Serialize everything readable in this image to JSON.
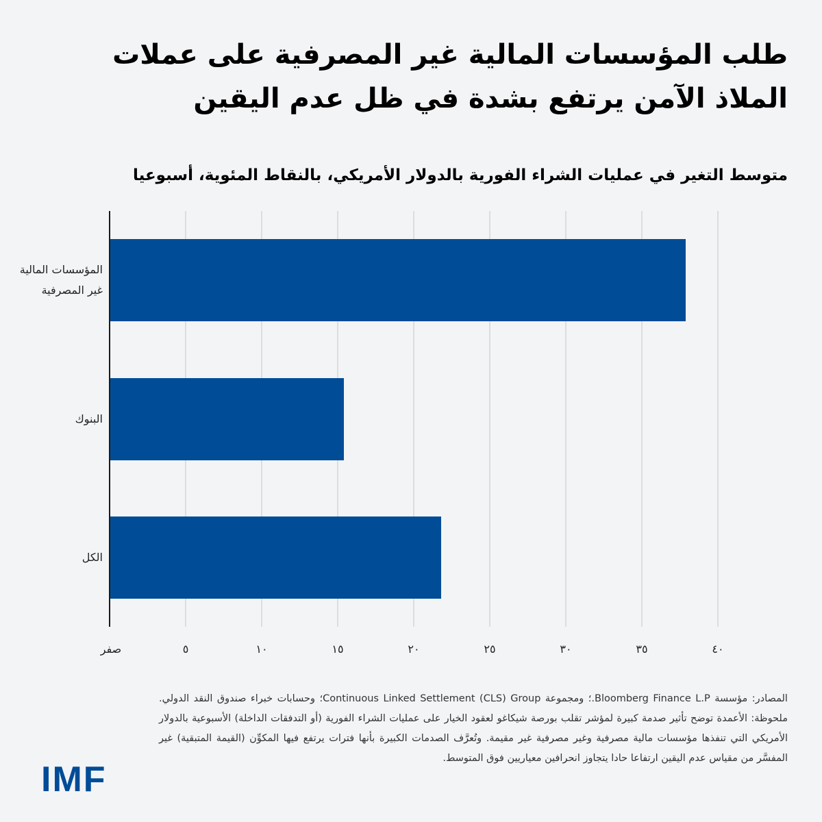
{
  "title": "طلب المؤسسات المالية غير المصرفية على عملات الملاذ الآمن يرتفع بشدة في ظل عدم اليقين",
  "subtitle": "متوسط التغير في عمليات الشراء الفورية بالدولار الأمريكي، بالنقاط المئوية، أسبوعيا",
  "colors": {
    "bar": "#004c97",
    "background": "#f3f4f6",
    "grid": "#dcdde0",
    "logo": "#004c97"
  },
  "axis": {
    "ticks": [
      {
        "value": 0,
        "label": "صفر"
      },
      {
        "value": 5,
        "label": "٥"
      },
      {
        "value": 10,
        "label": "١٠"
      },
      {
        "value": 15,
        "label": "١٥"
      },
      {
        "value": 20,
        "label": "٢٠"
      },
      {
        "value": 25,
        "label": "٢٥"
      },
      {
        "value": 30,
        "label": "٣٠"
      },
      {
        "value": 35,
        "label": "٣٥"
      },
      {
        "value": 40,
        "label": "٤٠"
      }
    ]
  },
  "categories": [
    {
      "label_line1": "المؤسسات المالية",
      "label_line2": "غير المصرفية"
    },
    {
      "label_line1": "البنوك",
      "label_line2": ""
    },
    {
      "label_line1": "الكل",
      "label_line2": ""
    }
  ],
  "chart_data": {
    "type": "bar",
    "orientation": "horizontal",
    "title": "طلب المؤسسات المالية غير المصرفية على عملات الملاذ الآمن يرتفع بشدة في ظل عدم اليقين",
    "subtitle": "متوسط التغير في عمليات الشراء الفورية بالدولار الأمريكي، بالنقاط المئوية، أسبوعيا",
    "categories": [
      "المؤسسات المالية غير المصرفية",
      "البنوك",
      "الكل"
    ],
    "values": [
      37.9,
      15.4,
      21.8
    ],
    "xlabel": "",
    "ylabel": "",
    "xlim": [
      0,
      40
    ],
    "xticks": [
      0,
      5,
      10,
      15,
      20,
      25,
      30,
      35,
      40
    ],
    "xtick_labels": [
      "صفر",
      "٥",
      "١٠",
      "١٥",
      "٢٠",
      "٢٥",
      "٣٠",
      "٣٥",
      "٤٠"
    ],
    "grid": "vertical",
    "legend": "none"
  },
  "footer": {
    "note": "المصادر: مؤسسة Bloomberg Finance L.P.؛ ومجموعة Continuous Linked Settlement (CLS) Group؛ وحسابات خبراء صندوق النقد الدولي. ملحوظة: الأعمدة توضح تأثير صدمة كبيرة لمؤشر تقلب بورصة شيكاغو لعقود الخيار على عمليات الشراء الفورية (أو التدفقات الداخلة) الأسبوعية بالدولار الأمريكي التي تنفذها مؤسسات مالية مصرفية وغير مصرفية غير مقيمة. وتُعرَّف الصدمات الكبيرة بأنها فترات يرتفع فيها المكوِّن (القيمة المتبقية) غير المفسَّر من مقياس عدم اليقين ارتفاعا حادا يتجاوز انحرافين معياريين فوق المتوسط.",
    "logo": "IMF"
  }
}
